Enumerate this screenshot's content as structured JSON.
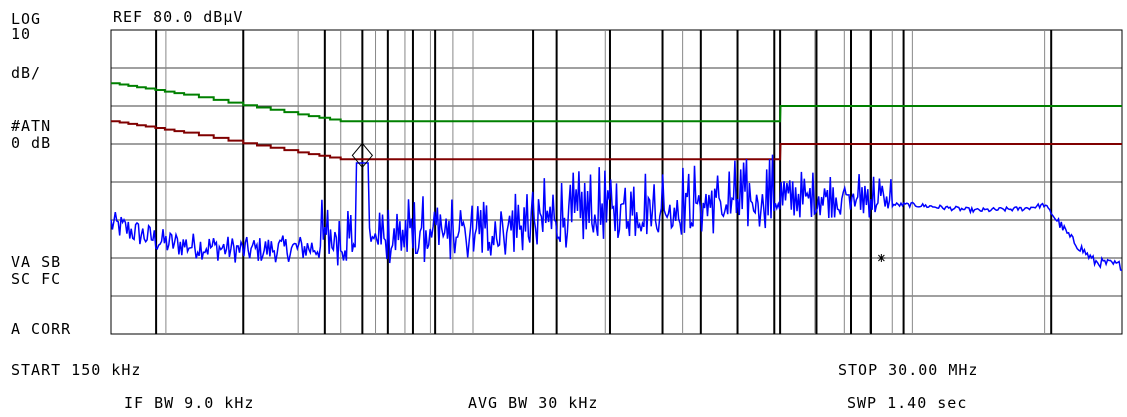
{
  "header": {
    "ref_level": "REF 80.0 dBµV"
  },
  "left_panel": {
    "scale_mode": "LOG",
    "scale_value": "10",
    "scale_unit": "dB/",
    "attenuation_label": "#ATN",
    "attenuation_value": "0 dB",
    "flags_line1": "VA SB",
    "flags_line2": "SC FC",
    "correction": "A CORR"
  },
  "footer": {
    "start": "START 150 kHz",
    "stop": "STOP 30.00 MHz",
    "if_bw": "IF BW 9.0 kHz",
    "avg_bw": "AVG BW 30 kHz",
    "sweep": "SWP 1.40  sec"
  },
  "chart_data": {
    "type": "line",
    "x_scale": "log",
    "x_unit": "MHz",
    "y_unit": "dBµV",
    "xlim": [
      0.15,
      30
    ],
    "ylim": [
      0,
      80
    ],
    "grid": true,
    "decade_lines_mhz": [
      0.15,
      0.2,
      0.3,
      0.4,
      0.5,
      0.6,
      0.7,
      0.8,
      0.9,
      1,
      2,
      3,
      4,
      5,
      6,
      7,
      8,
      9,
      10,
      20,
      30
    ],
    "vertical_markers_mhz": [
      0.19,
      0.3,
      0.46,
      0.56,
      0.64,
      0.73,
      0.82,
      1.37,
      1.55,
      2.05,
      2.7,
      3.3,
      4.0,
      4.85,
      5.0,
      6.05,
      7.25,
      8.05,
      9.55,
      20.7
    ],
    "series": [
      {
        "color": "#008000",
        "points": [
          [
            0.15,
            66
          ],
          [
            0.18,
            64.6
          ],
          [
            0.22,
            63
          ],
          [
            0.3,
            60.2
          ],
          [
            0.4,
            57.8
          ],
          [
            0.5,
            56
          ],
          [
            5,
            56
          ],
          [
            5.01,
            60
          ],
          [
            30,
            60
          ]
        ]
      },
      {
        "color": "#800000",
        "points": [
          [
            0.15,
            56
          ],
          [
            0.18,
            54.6
          ],
          [
            0.22,
            53
          ],
          [
            0.3,
            50.2
          ],
          [
            0.4,
            47.8
          ],
          [
            0.5,
            46
          ],
          [
            5,
            46
          ],
          [
            5.01,
            50
          ],
          [
            30,
            50
          ]
        ]
      }
    ],
    "trace_color": "#0000ff",
    "trace_anchors": [
      [
        0.15,
        29
      ],
      [
        0.2,
        24
      ],
      [
        0.3,
        22
      ],
      [
        0.5,
        23
      ],
      [
        1,
        24
      ],
      [
        2,
        30
      ],
      [
        4,
        32
      ],
      [
        5,
        34
      ],
      [
        8,
        34
      ],
      [
        10,
        34
      ],
      [
        14,
        32.5
      ],
      [
        18,
        33
      ],
      [
        20,
        34
      ],
      [
        21,
        31
      ],
      [
        23,
        25
      ],
      [
        26,
        19
      ],
      [
        30,
        18
      ]
    ],
    "peak_marker": {
      "x": 0.56,
      "y": 47
    },
    "star_marker": {
      "x": 8.5,
      "y": 20
    }
  }
}
